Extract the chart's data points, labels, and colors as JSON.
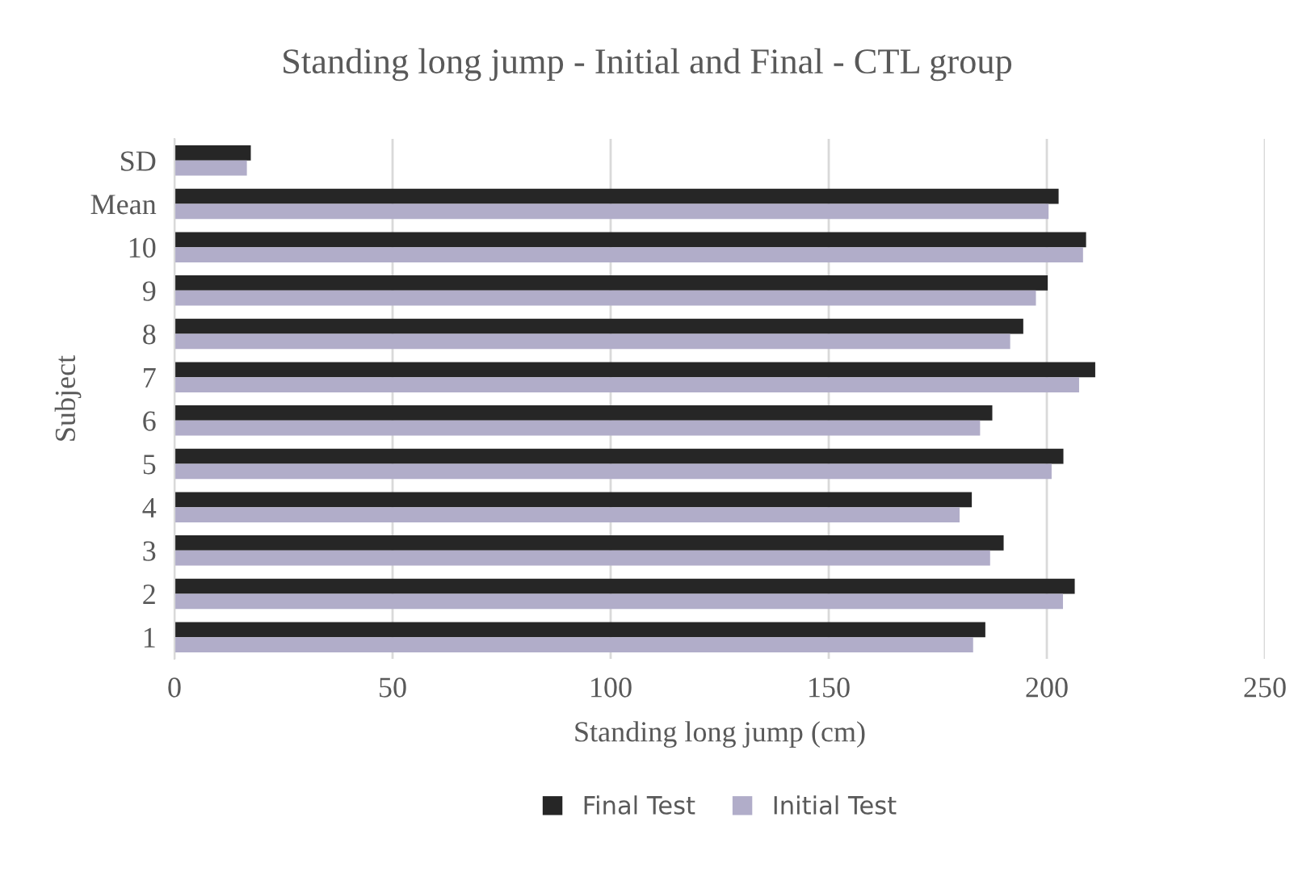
{
  "chart_data": {
    "type": "bar",
    "orientation": "horizontal",
    "title": "Standing long jump - Initial and Final - CTL group",
    "xlabel": "Standing long jump (cm)",
    "ylabel": "Subject",
    "categories": [
      "SD",
      "Mean",
      "10",
      "9",
      "8",
      "7",
      "6",
      "5",
      "4",
      "3",
      "2",
      "1"
    ],
    "series": [
      {
        "name": "Final Test",
        "color": "#262626",
        "values": [
          17.5,
          202.7,
          209,
          200.2,
          194.6,
          211.1,
          187.5,
          203.8,
          182.8,
          190.1,
          206.4,
          185.9
        ]
      },
      {
        "name": "Initial Test",
        "color": "#b1adc9",
        "values": [
          16.6,
          200.4,
          208.3,
          197.5,
          191.6,
          207.4,
          184.7,
          201.1,
          180,
          187,
          203.7,
          183.1
        ]
      }
    ],
    "xlim": [
      0,
      250
    ],
    "xticks": [
      0,
      50,
      100,
      150,
      200,
      250
    ],
    "grid": "x",
    "legend": "bottom"
  }
}
